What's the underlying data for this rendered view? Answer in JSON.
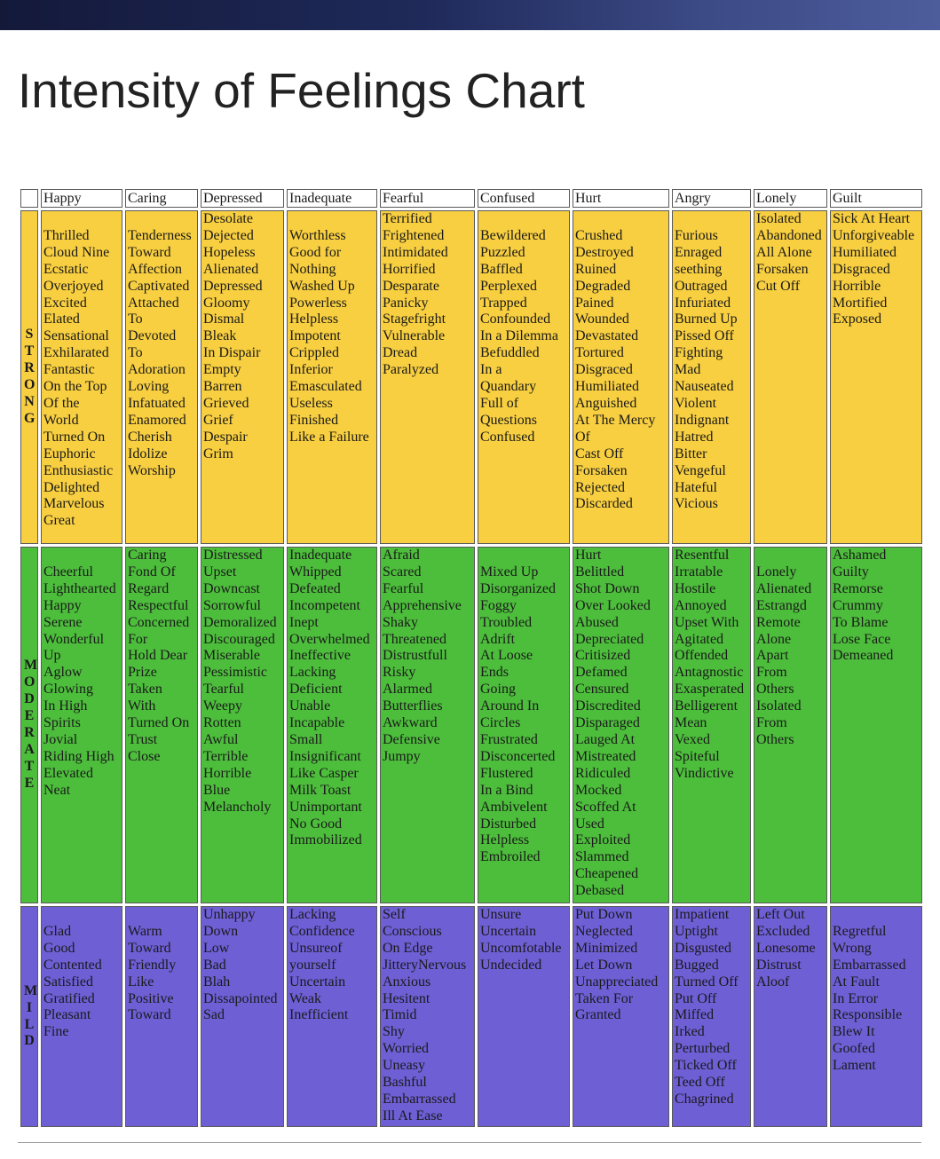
{
  "title": "Intensity of Feelings Chart",
  "columns": [
    "Happy",
    "Caring",
    "Depressed",
    "Inadequate",
    "Fearful",
    "Confused",
    "Hurt",
    "Angry",
    "Lonely",
    "Guilt"
  ],
  "rows": [
    {
      "label": "STRONG",
      "color": "#f8cf40",
      "cells": [
        [
          "",
          "Thrilled",
          "Cloud Nine",
          "Ecstatic",
          "Overjoyed",
          "Excited",
          "Elated",
          "Sensational",
          "Exhilarated",
          "Fantastic",
          "On the Top",
          "Of the",
          "World",
          "Turned On",
          "Euphoric",
          "Enthusiastic",
          "Delighted",
          "Marvelous",
          "Great"
        ],
        [
          "",
          "Tenderness",
          "Toward",
          "Affection",
          "Captivated",
          "Attached",
          "To",
          "Devoted",
          "To",
          "Adoration",
          "Loving",
          "Infatuated",
          "Enamored",
          "Cherish",
          "Idolize",
          "Worship"
        ],
        [
          "Desolate",
          "Dejected",
          "Hopeless",
          "Alienated",
          "Depressed",
          "Gloomy",
          "Dismal",
          "Bleak",
          "In Dispair",
          "Empty",
          "Barren",
          "Grieved",
          "Grief",
          "Despair",
          "Grim"
        ],
        [
          "",
          "Worthless",
          "Good for",
          "Nothing",
          "Washed Up",
          "Powerless",
          "Helpless",
          "Impotent",
          "Crippled",
          "Inferior",
          "Emasculated",
          "Useless",
          "Finished",
          "Like a Failure"
        ],
        [
          "Terrified",
          "Frightened",
          "Intimidated",
          "Horrified",
          "Desparate",
          "Panicky",
          "Stagefright",
          "Vulnerable",
          "Dread",
          "Paralyzed"
        ],
        [
          "",
          "Bewildered",
          "Puzzled",
          "Baffled",
          "Perplexed",
          "Trapped",
          "Confounded",
          "In a Dilemma",
          "Befuddled",
          "In a",
          "Quandary",
          "Full of",
          "Questions",
          "Confused"
        ],
        [
          "",
          "Crushed",
          "Destroyed",
          "Ruined",
          "Degraded",
          "Pained",
          "Wounded",
          "Devastated",
          "Tortured",
          "Disgraced",
          "Humiliated",
          "Anguished",
          "At The Mercy",
          "Of",
          "Cast Off",
          "Forsaken",
          "Rejected",
          "Discarded"
        ],
        [
          "",
          "Furious",
          "Enraged",
          "seething",
          "Outraged",
          "Infuriated",
          "Burned Up",
          "Pissed Off",
          "Fighting",
          "Mad",
          "Nauseated",
          "Violent",
          "Indignant",
          "Hatred",
          "Bitter",
          "Vengeful",
          "Hateful",
          "Vicious"
        ],
        [
          "Isolated",
          "Abandoned",
          "All Alone",
          "Forsaken",
          "Cut Off"
        ],
        [
          "Sick At Heart",
          "Unforgiveable",
          "Humiliated",
          "Disgraced",
          "Horrible",
          "Mortified",
          "Exposed"
        ]
      ]
    },
    {
      "label": "MODERATE",
      "color": "#4dbe3c",
      "cells": [
        [
          "",
          "Cheerful",
          "Lighthearted",
          "Happy",
          "Serene",
          "Wonderful",
          "Up",
          "Aglow",
          "Glowing",
          "In High",
          "Spirits",
          "Jovial",
          "Riding High",
          "Elevated",
          "Neat"
        ],
        [
          "Caring",
          "Fond Of",
          "Regard",
          "Respectful",
          "Concerned",
          "For",
          "Hold Dear",
          "Prize",
          "Taken",
          "With",
          "Turned On",
          "Trust",
          "Close"
        ],
        [
          "Distressed",
          "Upset",
          "Downcast",
          "Sorrowful",
          "Demoralized",
          "Discouraged",
          "Miserable",
          "Pessimistic",
          "Tearful",
          "Weepy",
          "Rotten",
          "Awful",
          "Terrible",
          "Horrible",
          "Blue",
          "Melancholy"
        ],
        [
          "Inadequate",
          "Whipped",
          "Defeated",
          "Incompetent",
          "Inept",
          "Overwhelmed",
          "Ineffective",
          "Lacking",
          "Deficient",
          "Unable",
          "Incapable",
          "Small",
          "Insignificant",
          "Like Casper",
          "Milk Toast",
          "Unimportant",
          "No Good",
          "Immobilized"
        ],
        [
          "Afraid",
          "Scared",
          "Fearful",
          "Apprehensive",
          "Shaky",
          "Threatened",
          "Distrustfull",
          "Risky",
          "Alarmed",
          "Butterflies",
          "Awkward",
          "Defensive",
          "Jumpy"
        ],
        [
          "",
          "Mixed Up",
          "Disorganized",
          "Foggy",
          "Troubled",
          "Adrift",
          "At Loose",
          "Ends",
          "Going",
          "Around In",
          "Circles",
          "Frustrated",
          "Disconcerted",
          "Flustered",
          "In a Bind",
          "Ambivelent",
          "Disturbed",
          "Helpless",
          "Embroiled"
        ],
        [
          "Hurt",
          "Belittled",
          "Shot Down",
          "Over Looked",
          "Abused",
          "Depreciated",
          "Critisized",
          "Defamed",
          "Censured",
          "Discredited",
          "Disparaged",
          "Lauged At",
          "Mistreated",
          "Ridiculed",
          "Mocked",
          "Scoffed At",
          "Used",
          "Exploited",
          "Slammed",
          "Cheapened",
          "Debased"
        ],
        [
          "Resentful",
          "Irratable",
          "Hostile",
          "Annoyed",
          "Upset With",
          "Agitated",
          "Offended",
          "Antagnostic",
          "Exasperated",
          "Belligerent",
          "Mean",
          "Vexed",
          "Spiteful",
          "Vindictive"
        ],
        [
          "",
          "Lonely",
          "Alienated",
          "Estrangd",
          "Remote",
          "Alone",
          "Apart",
          "From",
          "Others",
          "Isolated",
          "From",
          "Others"
        ],
        [
          "Ashamed",
          "Guilty",
          "Remorse",
          "Crummy",
          "To Blame",
          "Lose Face",
          "Demeaned"
        ]
      ]
    },
    {
      "label": "MILD",
      "color": "#6e5fd5",
      "cells": [
        [
          "",
          "Glad",
          "Good",
          "Contented",
          "Satisfied",
          "Gratified",
          "Pleasant",
          "Fine"
        ],
        [
          "",
          "Warm",
          "Toward",
          "Friendly",
          "Like",
          "Positive",
          "Toward"
        ],
        [
          "Unhappy",
          "Down",
          "Low",
          "Bad",
          "Blah",
          "Dissapointed",
          "Sad"
        ],
        [
          "Lacking",
          "Confidence",
          "Unsureof",
          "yourself",
          "Uncertain",
          "Weak",
          "Inefficient"
        ],
        [
          "Self",
          "Conscious",
          "On Edge",
          "JitteryNervous",
          "Anxious",
          "Hesitent",
          "Timid",
          "Shy",
          "Worried",
          "Uneasy",
          "Bashful",
          "Embarrassed",
          "Ill At Ease"
        ],
        [
          "Unsure",
          "Uncertain",
          "Uncomfotable",
          "Undecided"
        ],
        [
          "Put Down",
          "Neglected",
          "Minimized",
          "Let Down",
          "Unappreciated",
          "Taken For",
          "Granted"
        ],
        [
          "Impatient",
          "Uptight",
          "Disgusted",
          "Bugged",
          "Turned Off",
          "Put Off",
          "Miffed",
          "Irked",
          "Perturbed",
          "Ticked Off",
          "Teed Off",
          "Chagrined"
        ],
        [
          "Left Out",
          "Excluded",
          "Lonesome",
          "Distrust",
          "Aloof"
        ],
        [
          "",
          "Regretful",
          "Wrong",
          "Embarrassed",
          "At Fault",
          "In Error",
          "Responsible",
          "Blew It",
          "Goofed",
          "Lament"
        ]
      ]
    }
  ]
}
